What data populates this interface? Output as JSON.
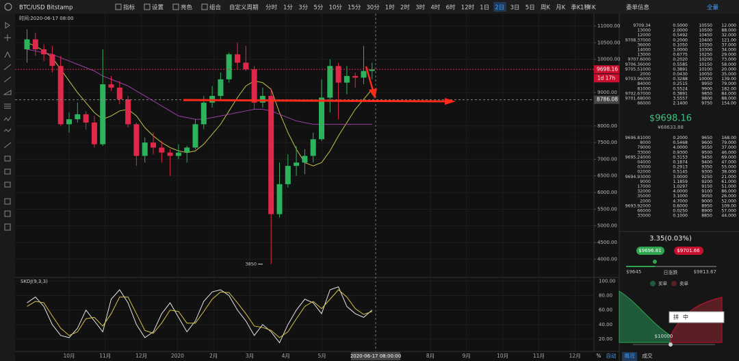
{
  "toolbar": {
    "symbol": "BTC/USD Bitstamp",
    "tools": [
      "指标",
      "设置",
      "亮色",
      "组合"
    ],
    "periods": [
      "自定义周期",
      "分时",
      "1分",
      "3分",
      "5分",
      "10分",
      "15分",
      "30分",
      "1时",
      "2时",
      "3时",
      "4时",
      "6时",
      "12时",
      "1日",
      "2日",
      "3日",
      "5日",
      "周K",
      "月K",
      "季K",
      "年K"
    ],
    "active_period": "2日",
    "second": "1秒"
  },
  "chart_data": [
    {
      "type": "candlestick",
      "hover_time": "时间:2020-06-17 08:00",
      "up_color": "#2db35d",
      "down_color": "#e0294a",
      "candles": [
        [
          10300,
          10900,
          9900,
          10600
        ],
        [
          10600,
          10800,
          10100,
          10300
        ],
        [
          10300,
          10450,
          9950,
          10150
        ],
        [
          10150,
          10400,
          9600,
          9800
        ],
        [
          9800,
          10100,
          8000,
          8050
        ],
        [
          8050,
          8400,
          7800,
          8200
        ],
        [
          8200,
          8700,
          8100,
          8350
        ],
        [
          8350,
          8450,
          7900,
          8100
        ],
        [
          8100,
          8300,
          7350,
          7450
        ],
        [
          7450,
          10300,
          7400,
          9250
        ],
        [
          9250,
          9500,
          9050,
          9150
        ],
        [
          9150,
          9350,
          8650,
          8800
        ],
        [
          8800,
          8900,
          7950,
          8050
        ],
        [
          8050,
          8100,
          6800,
          7100
        ],
        [
          7100,
          7650,
          6900,
          7500
        ],
        [
          7500,
          7800,
          7150,
          7350
        ],
        [
          7350,
          7550,
          6900,
          7200
        ],
        [
          7200,
          7300,
          6500,
          7100
        ],
        [
          7100,
          7450,
          7000,
          7200
        ],
        [
          7200,
          7400,
          6900,
          7350
        ],
        [
          7350,
          8200,
          7300,
          8050
        ],
        [
          8050,
          8900,
          7900,
          8700
        ],
        [
          8700,
          9200,
          8550,
          8900
        ],
        [
          8900,
          9600,
          8800,
          9400
        ],
        [
          9400,
          10200,
          9300,
          10150
        ],
        [
          10150,
          10500,
          9700,
          9900
        ],
        [
          9900,
          10400,
          9650,
          9700
        ],
        [
          9700,
          9800,
          8500,
          8700
        ],
        [
          8700,
          9150,
          8550,
          8900
        ],
        [
          8900,
          9100,
          3850,
          5350
        ],
        [
          5350,
          6900,
          5250,
          6250
        ],
        [
          6250,
          7150,
          6150,
          6800
        ],
        [
          6800,
          7400,
          6500,
          6900
        ],
        [
          6900,
          7300,
          6550,
          7100
        ],
        [
          7100,
          7800,
          6900,
          7600
        ],
        [
          7600,
          9400,
          7550,
          8850
        ],
        [
          8850,
          10000,
          8400,
          9800
        ],
        [
          9800,
          9900,
          8200,
          9300
        ],
        [
          9300,
          9800,
          8950,
          9500
        ],
        [
          9500,
          9600,
          9150,
          9450
        ],
        [
          9450,
          10400,
          9250,
          9650
        ],
        [
          9650,
          9900,
          9400,
          9698.16
        ]
      ],
      "series": [
        {
          "color": "#c8c24a",
          "values": [
            10500,
            10400,
            10250,
            10050,
            9700,
            9350,
            9000,
            8700,
            8400,
            8200,
            8300,
            8450,
            8500,
            8300,
            7950,
            7700,
            7500,
            7350,
            7250,
            7200,
            7250,
            7450,
            7750,
            8050,
            8450,
            8850,
            9200,
            9350,
            9300,
            9100,
            8400,
            7800,
            7300,
            6900,
            6800,
            6900,
            7250,
            7700,
            8100,
            8500,
            8800,
            9100
          ]
        },
        {
          "color": "#9b3fa8",
          "values": [
            10300,
            10250,
            10200,
            10150,
            10050,
            9950,
            9850,
            9750,
            9650,
            9500,
            9400,
            9300,
            9200,
            9050,
            8900,
            8750,
            8600,
            8450,
            8300,
            8250,
            8200,
            8200,
            8250,
            8300,
            8350,
            8400,
            8450,
            8500,
            8500,
            8450,
            8350,
            8250,
            8150,
            8100,
            8050,
            8050,
            8050,
            8050,
            8050,
            8050,
            8050,
            8050
          ]
        }
      ],
      "x_labels": [
        "10月",
        "11月",
        "12月",
        "2020",
        "2月",
        "3月",
        "4月",
        "5月",
        null,
        null,
        "8月",
        "9月",
        "10月",
        "11月",
        "12月"
      ],
      "crosshair_time": "2020-06-17 08:00:00",
      "last_price": 9698.16,
      "countdown": "1d 17h",
      "crosshair_price": 8786.08,
      "low_label": 3850,
      "ylim": [
        3450,
        11370
      ],
      "yticks": [
        {
          "value": 11000,
          "label": "11000.00"
        },
        {
          "value": 10500,
          "label": "10500.00"
        },
        {
          "value": 10000,
          "label": "10000.00"
        },
        {
          "value": 9000,
          "label": "9000.00"
        },
        {
          "value": 8000,
          "label": "8000.00"
        },
        {
          "value": 7500,
          "label": "7500.00"
        },
        {
          "value": 7000,
          "label": "7000.00"
        },
        {
          "value": 6500,
          "label": "6500.00"
        },
        {
          "value": 6000,
          "label": "6000.00"
        },
        {
          "value": 5500,
          "label": "5500.00"
        },
        {
          "value": 5000,
          "label": "5000.00"
        },
        {
          "value": 4500,
          "label": "4500.00"
        },
        {
          "value": 4000,
          "label": "4000.00"
        }
      ],
      "grid": true
    },
    {
      "type": "line",
      "title": "SKDJ(9,3,3)",
      "series": [
        {
          "color": "#e6e6e6",
          "values": [
            70,
            78,
            65,
            40,
            25,
            22,
            35,
            60,
            45,
            30,
            75,
            88,
            70,
            40,
            22,
            30,
            55,
            70,
            50,
            30,
            45,
            72,
            85,
            88,
            80,
            60,
            45,
            25,
            40,
            30,
            15,
            40,
            60,
            75,
            70,
            55,
            88,
            92,
            65,
            55,
            50,
            60
          ]
        },
        {
          "color": "#d6c34a",
          "values": [
            65,
            72,
            70,
            52,
            35,
            25,
            30,
            48,
            50,
            38,
            55,
            78,
            78,
            55,
            32,
            28,
            42,
            60,
            58,
            42,
            42,
            58,
            75,
            85,
            84,
            70,
            55,
            38,
            36,
            32,
            22,
            30,
            48,
            65,
            72,
            62,
            75,
            88,
            78,
            62,
            54,
            58
          ]
        }
      ],
      "ylim": [
        3,
        105
      ],
      "yticks": [
        {
          "value": 100,
          "label": "100.00"
        },
        {
          "value": 80,
          "label": "80.00"
        },
        {
          "value": 60,
          "label": "60.00"
        },
        {
          "value": 40,
          "label": "40.00"
        },
        {
          "value": 20,
          "label": "20.00"
        }
      ],
      "grid": true
    }
  ],
  "bottom_bar": {
    "percent": "%",
    "auto": "自动",
    "tabs": [
      "概况",
      "成交"
    ]
  },
  "order_book": {
    "title": "委单信息",
    "mode": "全量",
    "asks": [
      [
        "9709.34",
        "0.5000",
        "10550",
        "12.000"
      ],
      [
        "13000",
        "2.0000",
        "10500",
        "88.000"
      ],
      [
        "12000",
        "0.5492",
        "10450",
        "32.000"
      ],
      [
        "9708.37000",
        "0.2000",
        "10400",
        "121.00"
      ],
      [
        "36000",
        "0.1050",
        "10350",
        "37.000"
      ],
      [
        "14000",
        "3.0000",
        "10300",
        "34.000"
      ],
      [
        "13000",
        "0.6775",
        "10250",
        "29.000"
      ],
      [
        "9707.6000",
        "0.2020",
        "10200",
        "73.000"
      ],
      [
        "9706.36000",
        "0.5585",
        "10150",
        "58.000"
      ],
      [
        "9705.51000",
        "0.3891",
        "10100",
        "20.000"
      ],
      [
        "2000",
        "0.0430",
        "10050",
        "35.000"
      ],
      [
        "9703.96000",
        "0.3288",
        "10000",
        "139.00"
      ],
      [
        "84000",
        "0.2515",
        "9950",
        "79.000"
      ],
      [
        "81000",
        "0.5524",
        "9900",
        "182.00"
      ],
      [
        "9702.67000",
        "0.3891",
        "9850",
        "84.000"
      ],
      [
        "9701.68000",
        "3.5557",
        "9800",
        "88.000"
      ],
      [
        "66000",
        "2.1400",
        "9750",
        "154.00"
      ]
    ],
    "price": "$9698.16",
    "price_cny": "¥68633.88",
    "bids": [
      [
        "9696.81000",
        "0.2000",
        "9650",
        "168.00"
      ],
      [
        "8000",
        "0.5468",
        "9600",
        "79.000"
      ],
      [
        "79000",
        "4.0000",
        "9550",
        "37.000"
      ],
      [
        "33000",
        "0.9300",
        "9500",
        "46.000"
      ],
      [
        "9695.24000",
        "0.3153",
        "9450",
        "69.000"
      ],
      [
        "04000",
        "0.1874",
        "9400",
        "47.000"
      ],
      [
        "03000",
        "0.2913",
        "9350",
        "55.000"
      ],
      [
        "02000",
        "0.5145",
        "9300",
        "38.000"
      ],
      [
        "9694.93000",
        "3.0000",
        "9250",
        "21.000"
      ],
      [
        "9000",
        "1.1859",
        "9200",
        "61.000"
      ],
      [
        "17000",
        "1.0297",
        "9150",
        "51.000"
      ],
      [
        "32000",
        "4.0000",
        "9100",
        "86.000"
      ],
      [
        "35000",
        "3.1000",
        "9050",
        "26.000"
      ],
      [
        "2000",
        "4.7000",
        "9000",
        "52.000"
      ],
      [
        "9693.92000",
        "0.6000",
        "8950",
        "109.00"
      ],
      [
        "66000",
        "0.0250",
        "8900",
        "57.000"
      ],
      [
        "33000",
        "0.1000",
        "8850",
        "44.000"
      ]
    ],
    "change": "3.35(0.03%)",
    "bid_button": "$9696.81",
    "ask_button": "$9701.66",
    "day_low": "$9645",
    "day_range_label": "日涨跌",
    "day_high": "$9813.67",
    "legend_buy": "买单",
    "legend_sell": "卖单",
    "depth_price": "$10000",
    "ime": [
      "拼",
      "中"
    ]
  }
}
